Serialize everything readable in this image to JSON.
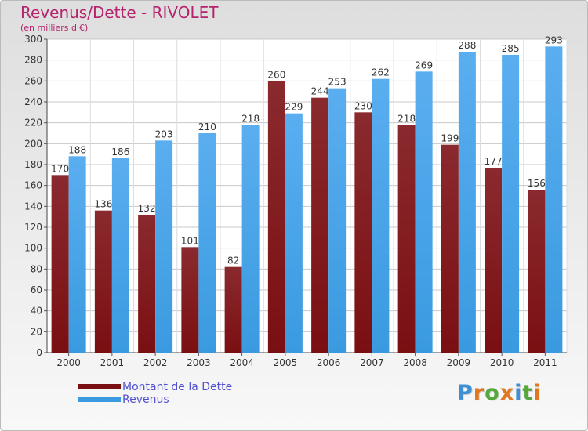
{
  "title": "Revenus/Dette - RIVOLET",
  "subtitle": "(en milliers d'€)",
  "colors": {
    "dette": "#7a0f12",
    "revenus": "#3a9ae0",
    "title": "#b5236b",
    "legend_text": "#5151d0"
  },
  "legend": {
    "dette_label": "Montant de la Dette",
    "revenus_label": "Revenus"
  },
  "logo": {
    "text": "Proxiti",
    "letter_colors": [
      "#3f8fd4",
      "#e07820",
      "#55a83c",
      "#e07820",
      "#3f8fd4",
      "#55a83c",
      "#e07820"
    ]
  },
  "chart_data": {
    "type": "bar",
    "categories": [
      "2000",
      "2001",
      "2002",
      "2003",
      "2004",
      "2005",
      "2006",
      "2007",
      "2008",
      "2009",
      "2010",
      "2011"
    ],
    "series": [
      {
        "name": "Montant de la Dette",
        "values": [
          170,
          136,
          132,
          101,
          82,
          260,
          244,
          230,
          218,
          199,
          177,
          156
        ]
      },
      {
        "name": "Revenus",
        "values": [
          188,
          186,
          203,
          210,
          218,
          229,
          253,
          262,
          269,
          288,
          285,
          293
        ]
      }
    ],
    "ylim": [
      0,
      300
    ],
    "ytick_step": 20,
    "grid": true,
    "legend_position": "bottom-left"
  }
}
